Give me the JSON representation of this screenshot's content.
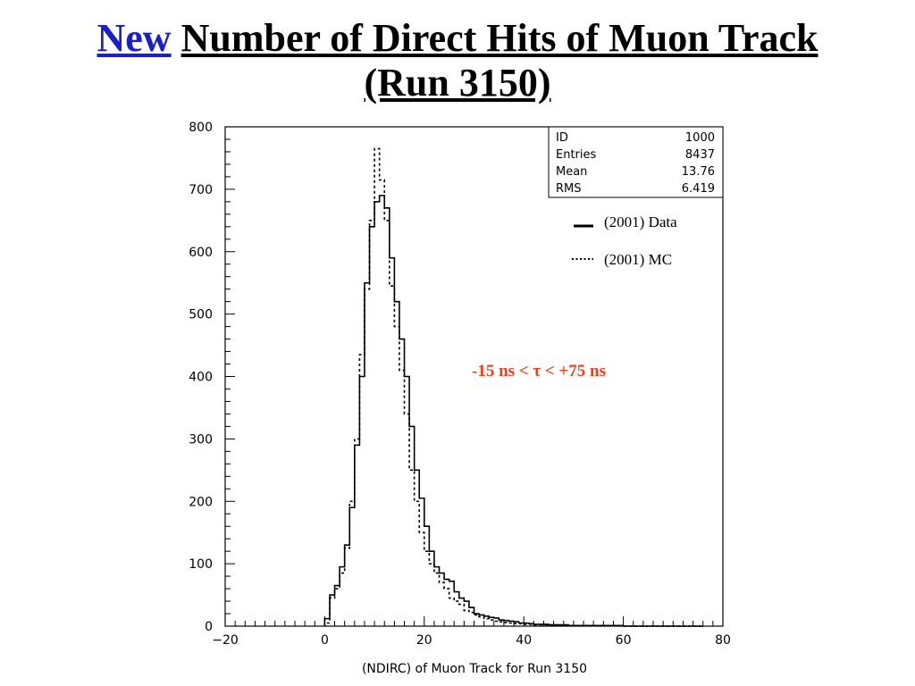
{
  "title": {
    "new_word": "New",
    "main": "Number of Direct Hits of Muon Track",
    "line2": "(Run 3150)",
    "new_color": "#1a20c8"
  },
  "stats_box": {
    "rows": [
      {
        "label": "ID",
        "value": "1000"
      },
      {
        "label": "Entries",
        "value": "8437"
      },
      {
        "label": "Mean",
        "value": "13.76"
      },
      {
        "label": "RMS",
        "value": "6.419"
      }
    ]
  },
  "legend": {
    "data_label": "(2001) Data",
    "mc_label": "(2001) MC",
    "placement": "top-right"
  },
  "annotation": {
    "text": "-15 ns < τ < +75 ns",
    "color": "#e8401c"
  },
  "chart_data": {
    "type": "histogram",
    "xlabel": "(NDIRC) of Muon Track for Run 3150",
    "ylabel": "",
    "xlim": [
      -20,
      80
    ],
    "ylim": [
      0,
      800
    ],
    "bin_width": 1,
    "bin_start": 0,
    "x_ticks": [
      "−20",
      "0",
      "20",
      "40",
      "60",
      "80"
    ],
    "x_tick_values": [
      -20,
      0,
      20,
      40,
      60,
      80
    ],
    "y_ticks": [
      "0",
      "100",
      "200",
      "300",
      "400",
      "500",
      "600",
      "700",
      "800"
    ],
    "y_tick_values": [
      0,
      100,
      200,
      300,
      400,
      500,
      600,
      700,
      800
    ],
    "series": [
      {
        "name": "(2001) Data",
        "style": "solid",
        "values": [
          12,
          50,
          65,
          95,
          130,
          190,
          290,
          400,
          550,
          640,
          680,
          690,
          670,
          590,
          520,
          460,
          400,
          320,
          250,
          205,
          160,
          120,
          95,
          85,
          75,
          72,
          55,
          45,
          40,
          30,
          20,
          18,
          16,
          14,
          13,
          10,
          9,
          8,
          7,
          5,
          5,
          4,
          3,
          3,
          3,
          2,
          2,
          2,
          2,
          1,
          1,
          1,
          1,
          1,
          1,
          1,
          1,
          1,
          1,
          1,
          0,
          0,
          0,
          0,
          0,
          0,
          0,
          0,
          0,
          0,
          0,
          0,
          0,
          0,
          0,
          0
        ]
      },
      {
        "name": "(2001) MC",
        "style": "dotted",
        "values": [
          5,
          45,
          60,
          85,
          125,
          200,
          300,
          435,
          540,
          650,
          765,
          715,
          650,
          545,
          480,
          410,
          340,
          250,
          200,
          150,
          120,
          100,
          85,
          70,
          60,
          45,
          40,
          35,
          25,
          22,
          18,
          15,
          12,
          10,
          8,
          7,
          6,
          5,
          4,
          4,
          3,
          3,
          2,
          2,
          2,
          2,
          2,
          1,
          1,
          1,
          1,
          1,
          1,
          1,
          1,
          1,
          1,
          1,
          1,
          1,
          0,
          0,
          0,
          0,
          0,
          0,
          0,
          0,
          0,
          0,
          0,
          0,
          0,
          0,
          0,
          0
        ]
      }
    ]
  }
}
